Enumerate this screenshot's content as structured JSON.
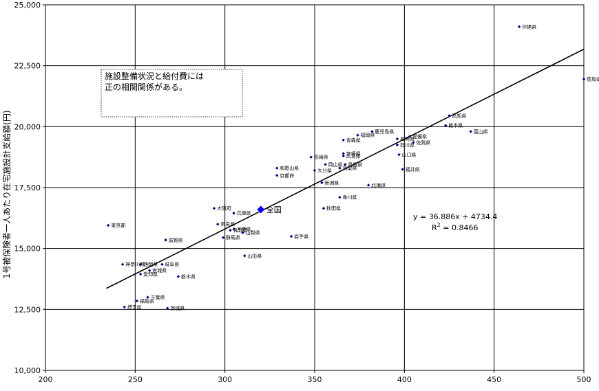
{
  "chart_data": {
    "type": "scatter",
    "title": "",
    "xlabel": "",
    "ylabel": "1号被保険者一人あたり在宅施設計支給額(円)",
    "xlim": [
      200,
      500
    ],
    "ylim": [
      10000,
      25000
    ],
    "x_ticks": [
      "200",
      "250",
      "300",
      "350",
      "400",
      "450",
      "500"
    ],
    "y_ticks": [
      "10,000",
      "12,500",
      "15,000",
      "17,500",
      "20,000",
      "22,500",
      "25,000"
    ],
    "grid": true,
    "legend": "none",
    "annotation_lines": [
      "施設整備状況と給付費には",
      "正の相関関係がある。"
    ],
    "trendline": {
      "slope": 36.886,
      "intercept": 4734.4,
      "x_range": [
        234,
        500
      ],
      "equation": "y = 36.886x + 4734.4",
      "r2_prefix": "R",
      "r2_exp": "2",
      "r2_value": " = 0.8466"
    },
    "national": {
      "name": "全国",
      "x": 320,
      "y": 16600
    },
    "points": [
      {
        "name": "沖縄県",
        "x": 464,
        "y": 24100
      },
      {
        "name": "徳島県",
        "x": 500,
        "y": 21950
      },
      {
        "name": "高知県",
        "x": 425,
        "y": 20450
      },
      {
        "name": "熊本県",
        "x": 423,
        "y": 20050
      },
      {
        "name": "富山県",
        "x": 437,
        "y": 19800
      },
      {
        "name": "鹿児島県",
        "x": 382,
        "y": 19800
      },
      {
        "name": "福岡県",
        "x": 374,
        "y": 19650
      },
      {
        "name": "愛媛県",
        "x": 403,
        "y": 19600
      },
      {
        "name": "長崎県",
        "x": 396,
        "y": 19500
      },
      {
        "name": "青森県",
        "x": 366,
        "y": 19450
      },
      {
        "name": "佐賀県",
        "x": 405,
        "y": 19350
      },
      {
        "name": "石川県",
        "x": 396,
        "y": 19250
      },
      {
        "name": "宮崎県",
        "x": 366,
        "y": 18900
      },
      {
        "name": "山口県",
        "x": 397,
        "y": 18850
      },
      {
        "name": "広島県",
        "x": 366,
        "y": 18800
      },
      {
        "name": "島根県",
        "x": 367,
        "y": 18450
      },
      {
        "name": "長崎県",
        "x": 348,
        "y": 18750
      },
      {
        "name": "岡山県",
        "x": 356,
        "y": 18450
      },
      {
        "name": "鳥取県",
        "x": 364,
        "y": 18300
      },
      {
        "name": "和歌山県",
        "x": 329,
        "y": 18300
      },
      {
        "name": "福井県",
        "x": 399,
        "y": 18250
      },
      {
        "name": "大分県",
        "x": 350,
        "y": 18200
      },
      {
        "name": "京都府",
        "x": 329,
        "y": 18000
      },
      {
        "name": "新潟県",
        "x": 354,
        "y": 17700
      },
      {
        "name": "北海道",
        "x": 380,
        "y": 17600
      },
      {
        "name": "香川県",
        "x": 364,
        "y": 17100
      },
      {
        "name": "秋田県",
        "x": 355,
        "y": 16650
      },
      {
        "name": "大阪府",
        "x": 294,
        "y": 16650
      },
      {
        "name": "兵庫県",
        "x": 305,
        "y": 16450
      },
      {
        "name": "奈良県",
        "x": 296,
        "y": 16000
      },
      {
        "name": "三重県",
        "x": 305,
        "y": 15800
      },
      {
        "name": "長野県",
        "x": 303,
        "y": 15750
      },
      {
        "name": "山梨県",
        "x": 310,
        "y": 15650
      },
      {
        "name": "群馬県",
        "x": 299,
        "y": 15450
      },
      {
        "name": "岩手県",
        "x": 337,
        "y": 15500
      },
      {
        "name": "東京都",
        "x": 235,
        "y": 15950
      },
      {
        "name": "滋賀県",
        "x": 267,
        "y": 15350
      },
      {
        "name": "山形県",
        "x": 311,
        "y": 14700
      },
      {
        "name": "神奈川県",
        "x": 243,
        "y": 14350
      },
      {
        "name": "静岡県",
        "x": 253,
        "y": 14350
      },
      {
        "name": "岐阜県",
        "x": 265,
        "y": 14350
      },
      {
        "name": "宮城県",
        "x": 258,
        "y": 14100
      },
      {
        "name": "愛知県",
        "x": 253,
        "y": 13950
      },
      {
        "name": "栃木県",
        "x": 274,
        "y": 13850
      },
      {
        "name": "千葉県",
        "x": 257,
        "y": 13000
      },
      {
        "name": "福島県",
        "x": 251,
        "y": 12850
      },
      {
        "name": "埼玉県",
        "x": 244,
        "y": 12600
      },
      {
        "name": "茨城県",
        "x": 268,
        "y": 12550
      }
    ]
  }
}
